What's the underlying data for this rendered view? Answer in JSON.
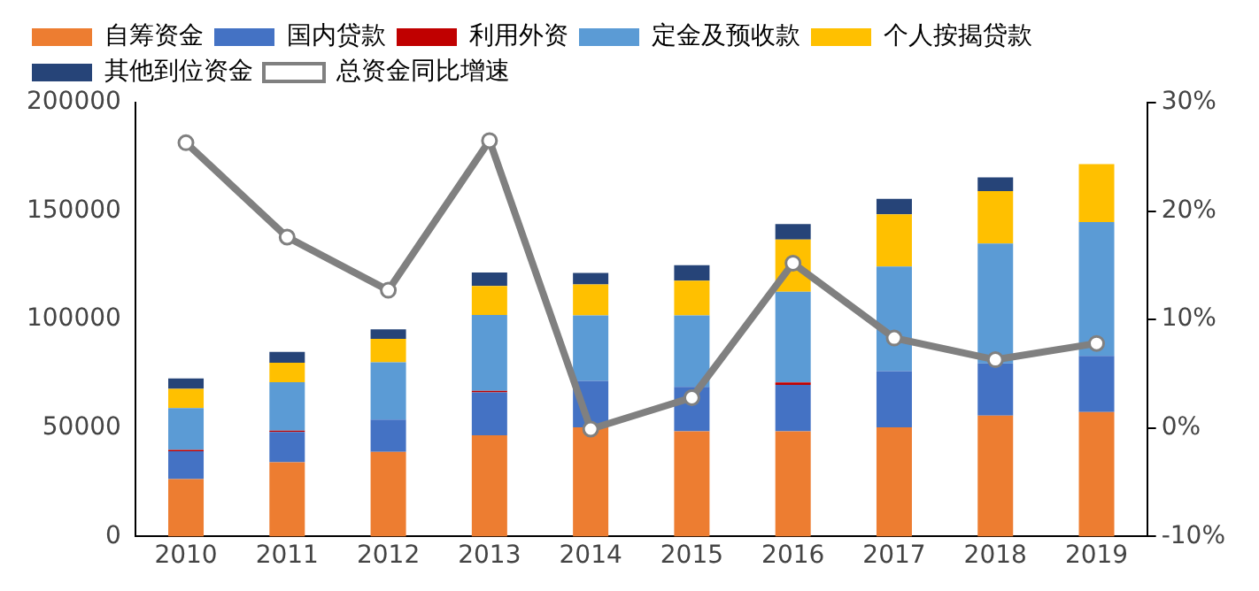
{
  "chart_data": {
    "type": "bar",
    "stacked": true,
    "categories": [
      "2010",
      "2011",
      "2012",
      "2013",
      "2014",
      "2015",
      "2016",
      "2017",
      "2018",
      "2019"
    ],
    "series": [
      {
        "name": "自筹资金",
        "color": "#ed7d31",
        "values": [
          26500,
          34200,
          39000,
          46700,
          50300,
          48500,
          48500,
          50300,
          55700,
          57400
        ]
      },
      {
        "name": "国内贷款",
        "color": "#4472c4",
        "values": [
          12800,
          14000,
          14900,
          19700,
          21400,
          20500,
          21400,
          25900,
          24100,
          25900
        ]
      },
      {
        "name": "利用外资",
        "color": "#c00000",
        "values": [
          600,
          600,
          null,
          700,
          null,
          null,
          1100,
          null,
          null,
          null
        ]
      },
      {
        "name": "定金及预收款",
        "color": "#5b9bd5",
        "values": [
          19300,
          22300,
          26400,
          35000,
          30200,
          32900,
          41800,
          48200,
          55300,
          61600
        ]
      },
      {
        "name": "个人按揭贷款",
        "color": "#ffc000",
        "values": [
          8900,
          9000,
          10800,
          13400,
          14300,
          16000,
          24100,
          24100,
          24100,
          26800
        ]
      },
      {
        "name": "其他到位资金",
        "color": "#264478",
        "values": [
          4800,
          5000,
          4400,
          6200,
          5300,
          7200,
          7100,
          7100,
          6300,
          null
        ]
      },
      {
        "name": "总资金同比增速",
        "type": "line",
        "axis": "y2",
        "color": "#808080",
        "marker": "circle",
        "values": [
          26.3,
          17.6,
          12.7,
          26.5,
          -0.1,
          2.8,
          15.2,
          8.3,
          6.3,
          7.8
        ]
      }
    ],
    "ylim": [
      0,
      200000
    ],
    "yticks": [
      0,
      50000,
      100000,
      150000,
      200000
    ],
    "y2lim": [
      -10,
      30
    ],
    "y2ticks": [
      {
        "value": -10,
        "label": "-10%"
      },
      {
        "value": 0,
        "label": "0%"
      },
      {
        "value": 10,
        "label": "10%"
      },
      {
        "value": 20,
        "label": "20%"
      },
      {
        "value": 30,
        "label": "30%"
      }
    ],
    "grid": false,
    "legend": "top"
  }
}
